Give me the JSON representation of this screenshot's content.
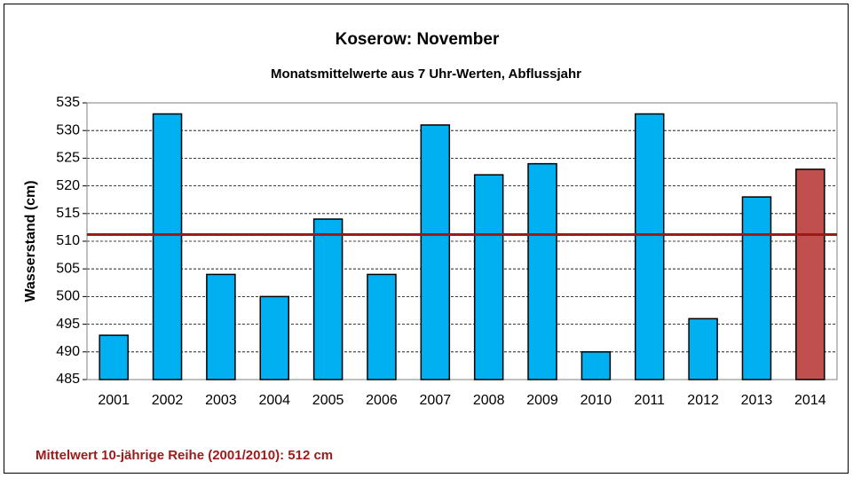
{
  "chart_data": {
    "type": "bar",
    "title": "Koserow: November",
    "subtitle": "Monatsmittelwerte aus 7 Uhr-Werten, Abflussjahr",
    "y_label": "Wasserstand (cm)",
    "annotation": "Mittelwert 10-jährige Reihe (2001/2010): 512 cm",
    "categories": [
      "2001",
      "2002",
      "2003",
      "2004",
      "2005",
      "2006",
      "2007",
      "2008",
      "2009",
      "2010",
      "2011",
      "2012",
      "2013",
      "2014"
    ],
    "values": [
      493,
      533,
      504,
      500,
      514,
      504,
      531,
      522,
      524,
      490,
      533,
      496,
      518,
      523
    ],
    "colors": [
      "#00b0f0",
      "#00b0f0",
      "#00b0f0",
      "#00b0f0",
      "#00b0f0",
      "#00b0f0",
      "#00b0f0",
      "#00b0f0",
      "#00b0f0",
      "#00b0f0",
      "#00b0f0",
      "#00b0f0",
      "#00b0f0",
      "#c0504d"
    ],
    "mean_line": {
      "value": 511.2,
      "color": "#9b1b1b"
    },
    "ylim": [
      485,
      535
    ],
    "yticks": [
      485,
      490,
      495,
      500,
      505,
      510,
      515,
      520,
      525,
      530,
      535
    ],
    "grid": true
  }
}
